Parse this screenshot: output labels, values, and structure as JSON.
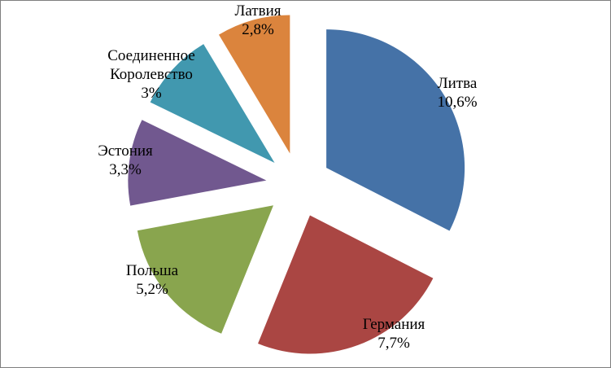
{
  "chart_data": {
    "type": "pie",
    "exploded": true,
    "legend": "none",
    "slices": [
      {
        "name": "Литва",
        "value": 10.6,
        "label": "10,6%",
        "color": "#4572A7"
      },
      {
        "name": "Германия",
        "value": 7.7,
        "label": "7,7%",
        "color": "#AA4643"
      },
      {
        "name": "Польша",
        "value": 5.2,
        "label": "5,2%",
        "color": "#89A54E"
      },
      {
        "name": "Эстония",
        "value": 3.3,
        "label": "3,3%",
        "color": "#71588F"
      },
      {
        "name": "Соединенное Королевство",
        "name_lines": [
          "Соединенное",
          "Королевство"
        ],
        "value": 3.0,
        "label": "3%",
        "color": "#4198AF"
      },
      {
        "name": "Латвия",
        "value": 2.8,
        "label": "2,8%",
        "color": "#DB843D"
      }
    ]
  }
}
